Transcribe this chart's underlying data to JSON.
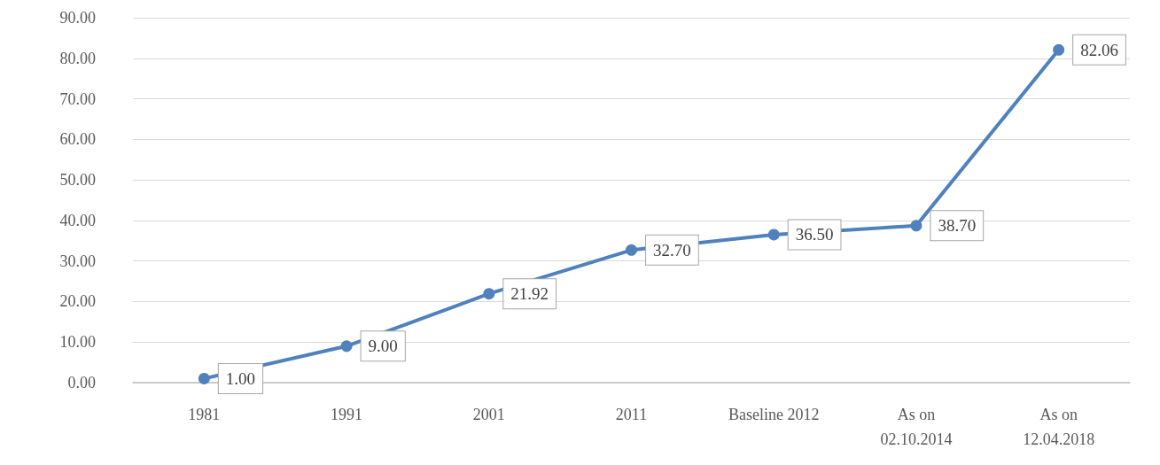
{
  "chart_data": {
    "type": "line",
    "categories": [
      "1981",
      "1991",
      "2001",
      "2011",
      "Baseline 2012",
      "As on\n02.10.2014",
      "As on\n12.04.2018"
    ],
    "series": [
      {
        "color": "#4f81bd",
        "values": [
          1.0,
          9.0,
          21.92,
          32.7,
          36.5,
          38.7,
          82.06
        ],
        "value_labels": [
          "1.00",
          "9.00",
          "21.92",
          "32.70",
          "36.50",
          "38.70",
          "82.06"
        ]
      }
    ],
    "ylim": [
      0,
      90
    ],
    "yticks": [
      {
        "value": 0,
        "label": "0.00"
      },
      {
        "value": 10,
        "label": "10.00"
      },
      {
        "value": 20,
        "label": "20.00"
      },
      {
        "value": 30,
        "label": "30.00"
      },
      {
        "value": 40,
        "label": "40.00"
      },
      {
        "value": 50,
        "label": "50.00"
      },
      {
        "value": 60,
        "label": "60.00"
      },
      {
        "value": 70,
        "label": "70.00"
      },
      {
        "value": 80,
        "label": "80.00"
      },
      {
        "value": 90,
        "label": "90.00"
      }
    ],
    "grid": "y",
    "marker": "circle",
    "line_style": "solid"
  }
}
